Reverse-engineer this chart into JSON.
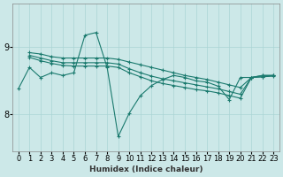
{
  "xlabel": "Humidex (Indice chaleur)",
  "bg_color": "#cce8e8",
  "line_color": "#1a7a6e",
  "grid_color": "#aad4d4",
  "xlim": [
    -0.5,
    23.5
  ],
  "ylim": [
    7.45,
    9.65
  ],
  "yticks": [
    8,
    9
  ],
  "xticks": [
    0,
    1,
    2,
    3,
    4,
    5,
    6,
    7,
    8,
    9,
    10,
    11,
    12,
    13,
    14,
    15,
    16,
    17,
    18,
    19,
    20,
    21,
    22,
    23
  ],
  "series": [
    {
      "x": [
        0,
        1,
        2,
        3,
        4,
        5,
        6,
        7,
        8,
        9,
        10,
        11,
        12,
        13,
        14,
        15,
        16,
        17,
        18,
        19,
        20,
        21,
        22,
        23
      ],
      "y": [
        8.38,
        8.7,
        8.55,
        8.62,
        8.58,
        8.62,
        9.18,
        9.22,
        8.7,
        7.67,
        8.02,
        8.28,
        8.43,
        8.52,
        8.58,
        8.55,
        8.5,
        8.48,
        8.42,
        8.22,
        8.55,
        8.55,
        8.58,
        8.58
      ]
    },
    {
      "x": [
        1,
        2,
        3,
        4,
        5,
        6,
        7,
        8,
        9,
        10,
        11,
        12,
        13,
        14,
        15,
        16,
        17,
        18,
        19,
        20,
        21,
        22,
        23
      ],
      "y": [
        8.92,
        8.9,
        8.86,
        8.84,
        8.84,
        8.84,
        8.84,
        8.84,
        8.82,
        8.78,
        8.74,
        8.7,
        8.66,
        8.62,
        8.58,
        8.55,
        8.52,
        8.48,
        8.44,
        8.4,
        8.55,
        8.58,
        8.58
      ]
    },
    {
      "x": [
        1,
        2,
        3,
        4,
        5,
        6,
        7,
        8,
        9,
        10,
        11,
        12,
        13,
        14,
        15,
        16,
        17,
        18,
        19,
        20,
        21,
        22,
        23
      ],
      "y": [
        8.88,
        8.84,
        8.8,
        8.77,
        8.77,
        8.77,
        8.77,
        8.77,
        8.75,
        8.68,
        8.62,
        8.57,
        8.53,
        8.5,
        8.47,
        8.44,
        8.41,
        8.38,
        8.34,
        8.3,
        8.55,
        8.56,
        8.58
      ]
    },
    {
      "x": [
        1,
        2,
        3,
        4,
        5,
        6,
        7,
        8,
        9,
        10,
        11,
        12,
        13,
        14,
        15,
        16,
        17,
        18,
        19,
        20,
        21,
        22,
        23
      ],
      "y": [
        8.85,
        8.8,
        8.76,
        8.73,
        8.72,
        8.72,
        8.72,
        8.72,
        8.7,
        8.62,
        8.56,
        8.5,
        8.46,
        8.43,
        8.4,
        8.37,
        8.35,
        8.32,
        8.28,
        8.24,
        8.55,
        8.56,
        8.57
      ]
    }
  ]
}
